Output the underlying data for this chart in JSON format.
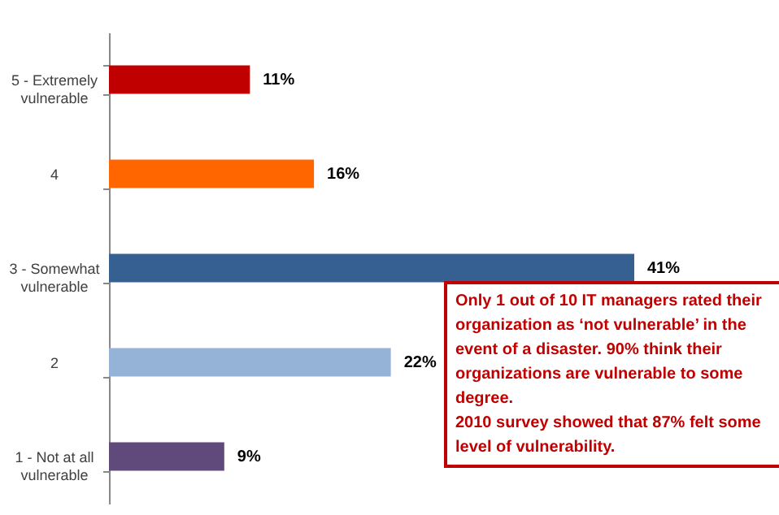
{
  "chart_data": {
    "type": "bar",
    "orientation": "horizontal",
    "categories": [
      "5 - Extremely vulnerable",
      "4",
      "3 - Somewhat vulnerable",
      "2",
      "1 - Not at all vulnerable"
    ],
    "values": [
      11,
      16,
      41,
      22,
      9
    ],
    "colors": [
      "#c00000",
      "#ff6600",
      "#366092",
      "#95b3d7",
      "#604a7b"
    ],
    "value_labels": [
      "11%",
      "16%",
      "41%",
      "22%",
      "9%"
    ],
    "annotations": [
      "Only 1 out of 10 IT managers rated their organization as ‘not vulnerable’ in the event of a disaster. 90% think their organizations are vulnerable to some degree.",
      "2010 survey showed that 87% felt some level of vulnerability."
    ],
    "grid": false
  }
}
